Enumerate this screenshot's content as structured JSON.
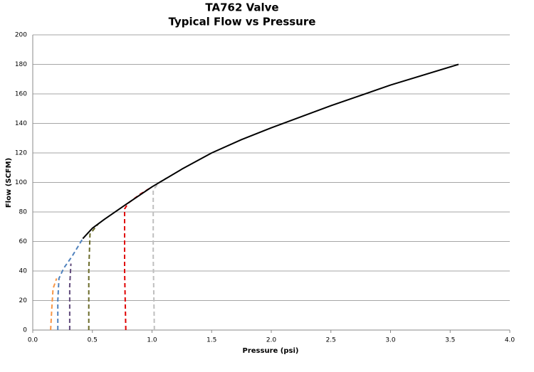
{
  "chart_data": {
    "type": "line",
    "title": "TA762 Valve",
    "subtitle": "Typical Flow vs Pressure",
    "x_label": "Pressure (psi)",
    "y_label": "Flow (SCFM)",
    "xlim": [
      0,
      4
    ],
    "ylim": [
      0,
      200
    ],
    "xticks": [
      {
        "value": 0,
        "label": "0.0"
      },
      0.5,
      {
        "value": 1,
        "label": "1.0"
      },
      1.5,
      {
        "value": 2,
        "label": "2.0"
      },
      2.5,
      {
        "value": 3,
        "label": "3.0"
      },
      3.5,
      {
        "value": 4,
        "label": "4.0"
      }
    ],
    "yticks": [
      0,
      20,
      40,
      60,
      80,
      100,
      120,
      140,
      160,
      180,
      200
    ],
    "grid": true,
    "series": [
      {
        "color": "#f79646",
        "dashed": true,
        "x": [
          0.15,
          0.16,
          0.17,
          0.2
        ],
        "values": [
          0,
          15,
          28,
          35
        ]
      },
      {
        "color": "#4f81bd",
        "dashed": true,
        "x": [
          0.21,
          0.21,
          0.22,
          0.26,
          0.33,
          0.42
        ],
        "values": [
          0,
          20,
          35,
          42,
          50,
          62
        ]
      },
      {
        "color": "#604a7b",
        "dashed": true,
        "x": [
          0.31,
          0.31,
          0.32
        ],
        "values": [
          0,
          30,
          45
        ]
      },
      {
        "color": "#6b6b2a",
        "dashed": true,
        "x": [
          0.47,
          0.47,
          0.48,
          0.55
        ],
        "values": [
          0,
          40,
          65,
          72
        ]
      },
      {
        "color": "#e00000",
        "dashed": true,
        "x": [
          0.78,
          0.77,
          0.77,
          0.8,
          0.9,
          1.0
        ],
        "values": [
          0,
          40,
          82,
          86,
          92,
          97
        ]
      },
      {
        "color": "#bfbfbf",
        "dashed": true,
        "x": [
          1.02,
          1.01,
          1.01,
          1.06,
          1.12
        ],
        "values": [
          0,
          50,
          95,
          100,
          103
        ]
      },
      {
        "color": "#000000",
        "dashed": false,
        "x": [
          0.42,
          0.5,
          0.6,
          0.78,
          1.0,
          1.25,
          1.5,
          1.75,
          2.0,
          2.5,
          3.0,
          3.57
        ],
        "values": [
          62,
          69,
          75,
          85,
          97,
          109,
          120,
          129,
          137,
          152,
          166,
          180
        ]
      }
    ]
  }
}
